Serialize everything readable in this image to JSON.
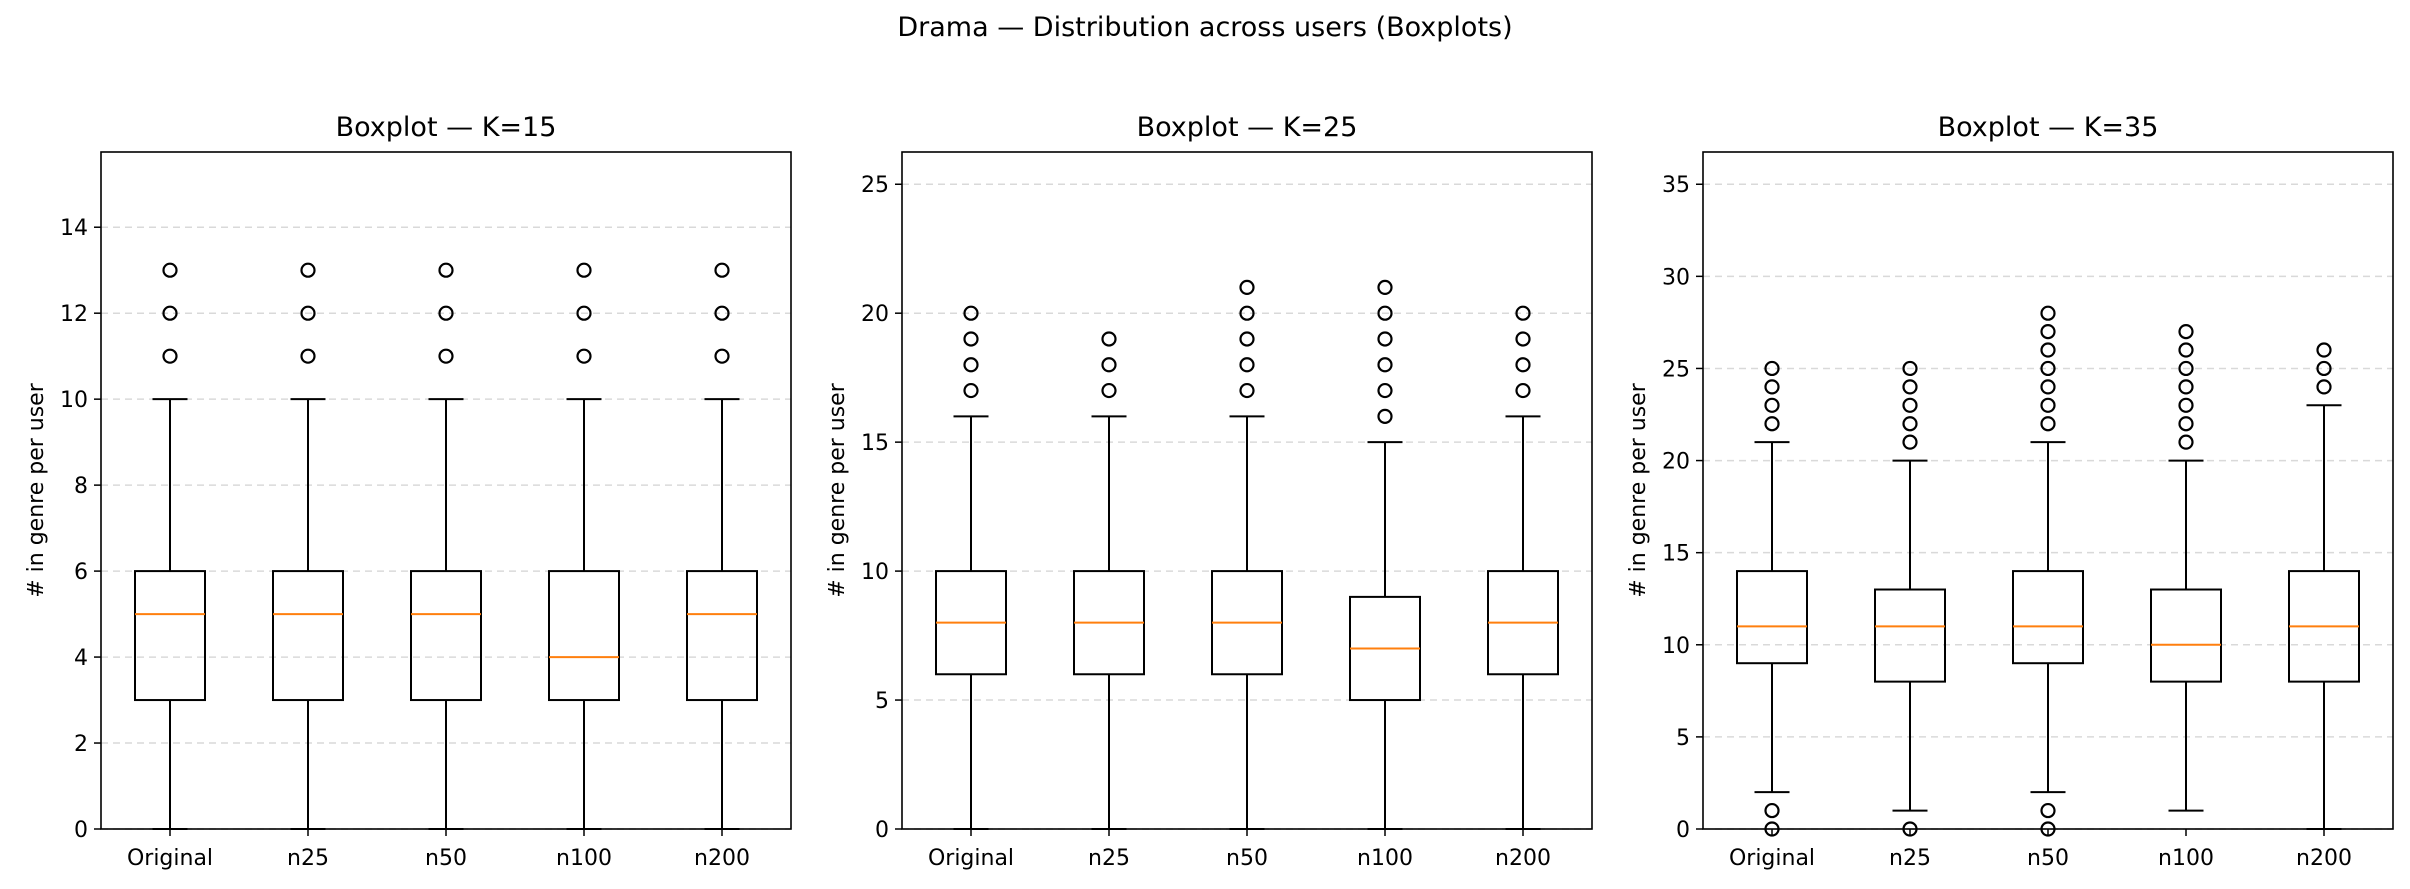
{
  "figure": {
    "suptitle": "Drama — Distribution across users (Boxplots)"
  },
  "chart_data": [
    {
      "type": "boxplot",
      "title": "Boxplot — K=15",
      "xlabel": "",
      "ylabel": "# in genre per user",
      "categories": [
        "Original",
        "n25",
        "n50",
        "n100",
        "n200"
      ],
      "ylim": [
        0,
        15.75
      ],
      "yticks": [
        0,
        2,
        4,
        6,
        8,
        10,
        12,
        14
      ],
      "grid": "y-dashed",
      "boxes": [
        {
          "whislo": 0,
          "q1": 3,
          "med": 5,
          "q3": 6,
          "whishi": 10,
          "fliers": [
            11,
            12,
            13
          ]
        },
        {
          "whislo": 0,
          "q1": 3,
          "med": 5,
          "q3": 6,
          "whishi": 10,
          "fliers": [
            11,
            12,
            13
          ]
        },
        {
          "whislo": 0,
          "q1": 3,
          "med": 5,
          "q3": 6,
          "whishi": 10,
          "fliers": [
            11,
            12,
            13
          ]
        },
        {
          "whislo": 0,
          "q1": 3,
          "med": 4,
          "q3": 6,
          "whishi": 10,
          "fliers": [
            11,
            12,
            13
          ]
        },
        {
          "whislo": 0,
          "q1": 3,
          "med": 5,
          "q3": 6,
          "whishi": 10,
          "fliers": [
            11,
            12,
            13
          ]
        }
      ]
    },
    {
      "type": "boxplot",
      "title": "Boxplot — K=25",
      "xlabel": "",
      "ylabel": "# in genre per user",
      "categories": [
        "Original",
        "n25",
        "n50",
        "n100",
        "n200"
      ],
      "ylim": [
        0,
        26.25
      ],
      "yticks": [
        0,
        5,
        10,
        15,
        20,
        25
      ],
      "grid": "y-dashed",
      "boxes": [
        {
          "whislo": 0,
          "q1": 6,
          "med": 8,
          "q3": 10,
          "whishi": 16,
          "fliers": [
            17,
            18,
            19,
            20
          ]
        },
        {
          "whislo": 0,
          "q1": 6,
          "med": 8,
          "q3": 10,
          "whishi": 16,
          "fliers": [
            17,
            18,
            19
          ]
        },
        {
          "whislo": 0,
          "q1": 6,
          "med": 8,
          "q3": 10,
          "whishi": 16,
          "fliers": [
            17,
            18,
            19,
            20,
            21
          ]
        },
        {
          "whislo": 0,
          "q1": 5,
          "med": 7,
          "q3": 9,
          "whishi": 15,
          "fliers": [
            16,
            17,
            18,
            19,
            20,
            21
          ]
        },
        {
          "whislo": 0,
          "q1": 6,
          "med": 8,
          "q3": 10,
          "whishi": 16,
          "fliers": [
            17,
            18,
            19,
            20
          ]
        }
      ]
    },
    {
      "type": "boxplot",
      "title": "Boxplot — K=35",
      "xlabel": "",
      "ylabel": "# in genre per user",
      "categories": [
        "Original",
        "n25",
        "n50",
        "n100",
        "n200"
      ],
      "ylim": [
        0,
        36.75
      ],
      "yticks": [
        0,
        5,
        10,
        15,
        20,
        25,
        30,
        35
      ],
      "grid": "y-dashed",
      "boxes": [
        {
          "whislo": 2,
          "q1": 9,
          "med": 11,
          "q3": 14,
          "whishi": 21,
          "fliers": [
            0,
            1,
            22,
            23,
            24,
            25
          ]
        },
        {
          "whislo": 1,
          "q1": 8,
          "med": 11,
          "q3": 13,
          "whishi": 20,
          "fliers": [
            0,
            21,
            22,
            23,
            24,
            25
          ]
        },
        {
          "whislo": 2,
          "q1": 9,
          "med": 11,
          "q3": 14,
          "whishi": 21,
          "fliers": [
            0,
            1,
            22,
            23,
            24,
            25,
            26,
            27,
            28
          ]
        },
        {
          "whislo": 1,
          "q1": 8,
          "med": 10,
          "q3": 13,
          "whishi": 20,
          "fliers": [
            21,
            22,
            23,
            24,
            25,
            26,
            27
          ]
        },
        {
          "whislo": 0,
          "q1": 8,
          "med": 11,
          "q3": 14,
          "whishi": 23,
          "fliers": [
            24,
            25,
            26
          ]
        }
      ]
    }
  ],
  "colors": {
    "box": "#000000",
    "median": "#ff7f0e",
    "grid": "#d9d9d9",
    "flier": "#000000"
  }
}
